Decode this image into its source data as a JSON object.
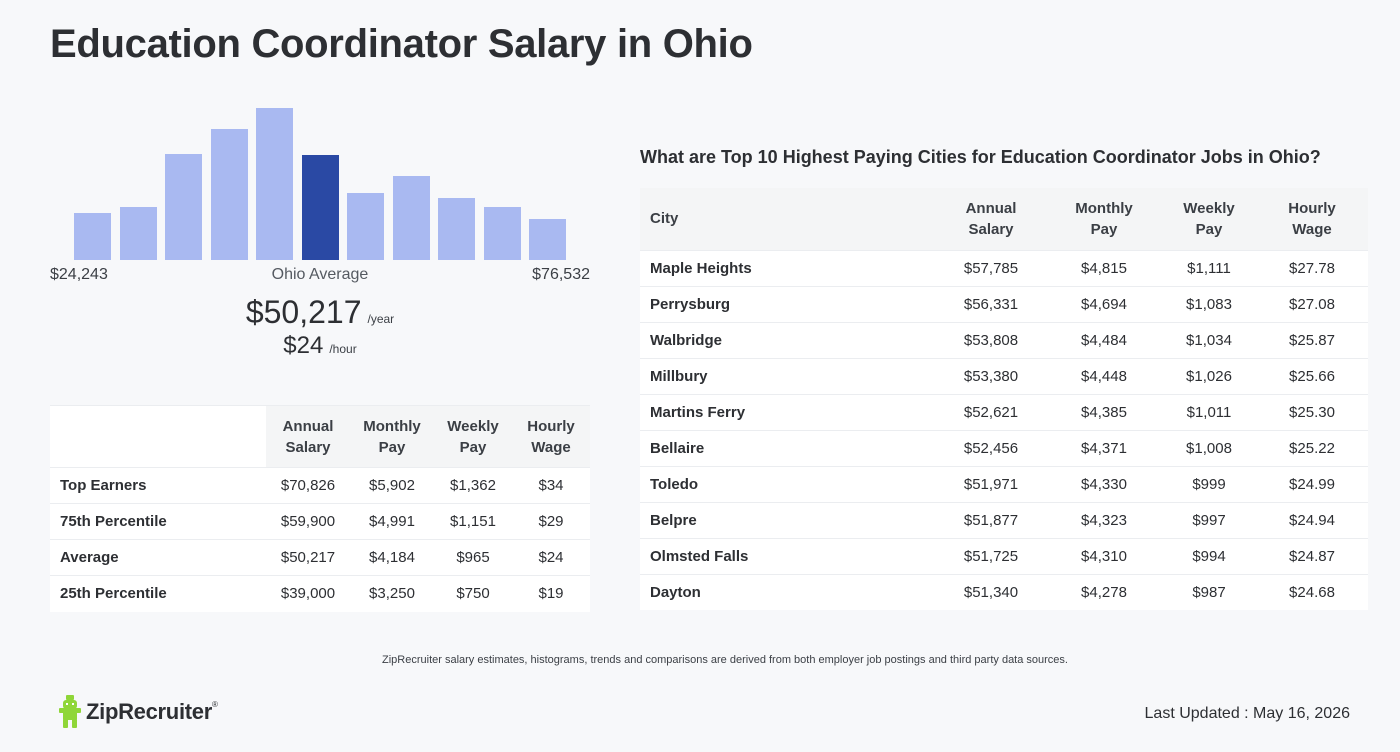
{
  "page": {
    "title": "Education Coordinator Salary in Ohio"
  },
  "histogram": {
    "min_label": "$24,243",
    "mid_label": "Ohio Average",
    "max_label": "$76,532",
    "bar_heights_relative": [
      0.31,
      0.35,
      0.7,
      0.86,
      1.0,
      0.69,
      0.44,
      0.55,
      0.41,
      0.35,
      0.27
    ],
    "highlighted_index": 5,
    "bar_color": "#a9b9f1",
    "highlight_color": "#2a49a4"
  },
  "average": {
    "yearly": "$50,217",
    "yearly_unit": "/year",
    "hourly": "$24",
    "hourly_unit": "/hour"
  },
  "percentiles": {
    "headers": [
      "",
      "Annual Salary",
      "Monthly Pay",
      "Weekly Pay",
      "Hourly Wage"
    ],
    "rows": [
      {
        "label": "Top Earners",
        "annual": "$70,826",
        "monthly": "$5,902",
        "weekly": "$1,362",
        "hourly": "$34"
      },
      {
        "label": "75th Percentile",
        "annual": "$59,900",
        "monthly": "$4,991",
        "weekly": "$1,151",
        "hourly": "$29"
      },
      {
        "label": "Average",
        "annual": "$50,217",
        "monthly": "$4,184",
        "weekly": "$965",
        "hourly": "$24"
      },
      {
        "label": "25th Percentile",
        "annual": "$39,000",
        "monthly": "$3,250",
        "weekly": "$750",
        "hourly": "$19"
      }
    ]
  },
  "cities": {
    "title": "What are Top 10 Highest Paying Cities for Education Coordinator Jobs in Ohio?",
    "headers": [
      "City",
      "Annual Salary",
      "Monthly Pay",
      "Weekly Pay",
      "Hourly Wage"
    ],
    "rows": [
      {
        "city": "Maple Heights",
        "annual": "$57,785",
        "monthly": "$4,815",
        "weekly": "$1,111",
        "hourly": "$27.78"
      },
      {
        "city": "Perrysburg",
        "annual": "$56,331",
        "monthly": "$4,694",
        "weekly": "$1,083",
        "hourly": "$27.08"
      },
      {
        "city": "Walbridge",
        "annual": "$53,808",
        "monthly": "$4,484",
        "weekly": "$1,034",
        "hourly": "$25.87"
      },
      {
        "city": "Millbury",
        "annual": "$53,380",
        "monthly": "$4,448",
        "weekly": "$1,026",
        "hourly": "$25.66"
      },
      {
        "city": "Martins Ferry",
        "annual": "$52,621",
        "monthly": "$4,385",
        "weekly": "$1,011",
        "hourly": "$25.30"
      },
      {
        "city": "Bellaire",
        "annual": "$52,456",
        "monthly": "$4,371",
        "weekly": "$1,008",
        "hourly": "$25.22"
      },
      {
        "city": "Toledo",
        "annual": "$51,971",
        "monthly": "$4,330",
        "weekly": "$999",
        "hourly": "$24.99"
      },
      {
        "city": "Belpre",
        "annual": "$51,877",
        "monthly": "$4,323",
        "weekly": "$997",
        "hourly": "$24.94"
      },
      {
        "city": "Olmsted Falls",
        "annual": "$51,725",
        "monthly": "$4,310",
        "weekly": "$994",
        "hourly": "$24.87"
      },
      {
        "city": "Dayton",
        "annual": "$51,340",
        "monthly": "$4,278",
        "weekly": "$987",
        "hourly": "$24.68"
      }
    ]
  },
  "footer": {
    "disclaimer": "ZipRecruiter salary estimates, histograms, trends and comparisons are derived from both employer job postings and third party data sources.",
    "brand": "ZipRecruiter",
    "trademark": "®",
    "logo_icon": "ziprecruiter-person-icon",
    "logo_color": "#8fd638",
    "last_updated": "Last Updated : May 16, 2026"
  }
}
